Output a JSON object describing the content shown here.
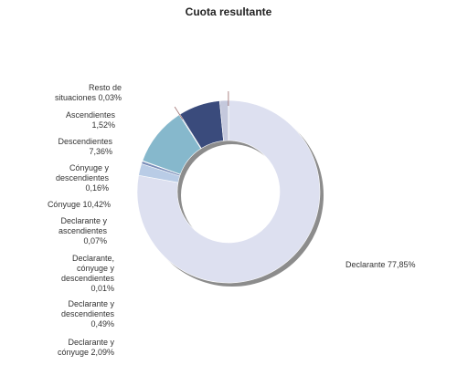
{
  "chart_data": {
    "type": "pie",
    "variant": "donut",
    "title": "Cuota resultante",
    "slices": [
      {
        "label": "Declarante 77,85%",
        "value": 77.85,
        "color": "#dde0f0"
      },
      {
        "label": "Declarante y cónyuge 2,09%",
        "value": 2.09,
        "color": "#b9cce6"
      },
      {
        "label": "Declarante y descendientes 0,49%",
        "value": 0.49,
        "color": "#7a8db8"
      },
      {
        "label": "Declarante, cónyuge y descendientes 0,01%",
        "value": 0.01,
        "color": "#9aa6c4"
      },
      {
        "label": "Declarante y ascendientes 0,07%",
        "value": 0.07,
        "color": "#6e84a8"
      },
      {
        "label": "Cónyuge 10,42%",
        "value": 10.42,
        "color": "#86b8cc"
      },
      {
        "label": "Cónyuge y descendientes 0,16%",
        "value": 0.16,
        "color": "#8a9cbc"
      },
      {
        "label": "Descendientes 7,36%",
        "value": 7.36,
        "color": "#3a4b7c"
      },
      {
        "label": "Ascendientes 1,52%",
        "value": 1.52,
        "color": "#c4c8dc"
      },
      {
        "label": "Resto de situaciones 0,03%",
        "value": 0.03,
        "color": "#8f98b4"
      }
    ]
  }
}
